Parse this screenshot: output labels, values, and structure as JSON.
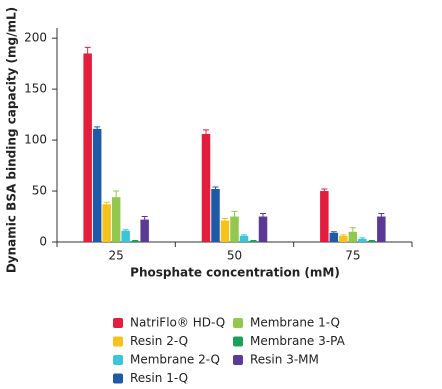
{
  "chart_data": {
    "type": "bar",
    "x_label": "Phosphate concentration (mM)",
    "y_label": "Dynamic BSA binding capacity (mg/mL)",
    "categories": [
      "25",
      "50",
      "75"
    ],
    "series": [
      {
        "name": "NatriFlo® HD-Q",
        "color": "#e31e3c",
        "values": [
          185,
          106,
          50
        ],
        "errors": [
          6,
          4,
          2
        ]
      },
      {
        "name": "Resin 1-Q",
        "color": "#1f5aa6",
        "values": [
          111,
          52,
          9
        ],
        "errors": [
          2,
          2,
          1
        ]
      },
      {
        "name": "Resin 2-Q",
        "color": "#f6c31c",
        "values": [
          37,
          21,
          6
        ],
        "errors": [
          2,
          2,
          1
        ]
      },
      {
        "name": "Membrane 1-Q",
        "color": "#92c84e",
        "values": [
          44,
          25,
          10
        ],
        "errors": [
          6,
          5,
          4
        ]
      },
      {
        "name": "Membrane 2-Q",
        "color": "#3cc4d8",
        "values": [
          11,
          6,
          3
        ],
        "errors": [
          1,
          1,
          1
        ]
      },
      {
        "name": "Membrane 3-PA",
        "color": "#1aa05a",
        "values": [
          1,
          1,
          1
        ],
        "errors": [
          0.5,
          0.5,
          0.5
        ]
      },
      {
        "name": "Resin 3-MM",
        "color": "#5b3a96",
        "values": [
          22,
          25,
          25
        ],
        "errors": [
          3,
          3,
          3
        ]
      }
    ],
    "ylim": [
      0,
      210
    ],
    "yticks": [
      0,
      50,
      100,
      150,
      200
    ]
  }
}
